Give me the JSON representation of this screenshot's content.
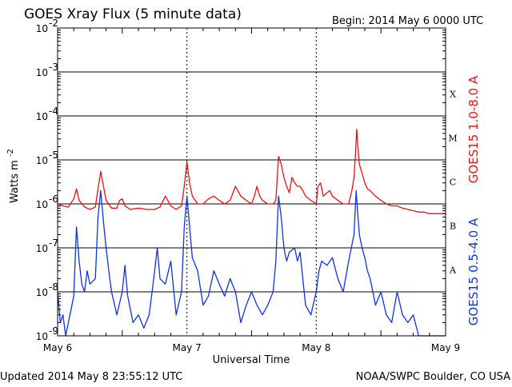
{
  "chart_data": {
    "type": "line",
    "title": "GOES Xray Flux (5 minute data)",
    "begin_label": "Begin:  2014 May 6 0000 UTC",
    "xlabel": "Universal Time",
    "ylabel_base": "Watts m",
    "ylabel_exp": "-2",
    "y_scale": "log",
    "ylim": [
      1e-09,
      0.01
    ],
    "xlim": [
      0,
      72
    ],
    "x_unit": "hours since 2014 May 6 0000 UTC",
    "grid": true,
    "x_ticks": [
      "May 6",
      "May 7",
      "May 8",
      "May 9"
    ],
    "x_tick_hours": [
      0,
      24,
      48,
      72
    ],
    "y_ticks": [
      {
        "base": "10",
        "exp": "-2",
        "value": 0.01
      },
      {
        "base": "10",
        "exp": "-3",
        "value": 0.001
      },
      {
        "base": "10",
        "exp": "-4",
        "value": 0.0001
      },
      {
        "base": "10",
        "exp": "-5",
        "value": 1e-05
      },
      {
        "base": "10",
        "exp": "-6",
        "value": 1e-06
      },
      {
        "base": "10",
        "exp": "-7",
        "value": 1e-07
      },
      {
        "base": "10",
        "exp": "-8",
        "value": 1e-08
      },
      {
        "base": "10",
        "exp": "-9",
        "value": 1e-09
      }
    ],
    "flare_classes": [
      {
        "label": "X",
        "value": 0.0001
      },
      {
        "label": "M",
        "value": 1e-05
      },
      {
        "label": "C",
        "value": 1e-06
      },
      {
        "label": "B",
        "value": 1e-07
      },
      {
        "label": "A",
        "value": 1e-08
      }
    ],
    "series": [
      {
        "name": "GOES15 1.0-8.0 A",
        "color": "#ee1111",
        "points": [
          [
            0,
            1e-06
          ],
          [
            1,
            9e-07
          ],
          [
            2,
            8.5e-07
          ],
          [
            3,
            1.3e-06
          ],
          [
            3.5,
            2.2e-06
          ],
          [
            4,
            1.2e-06
          ],
          [
            5,
            8.5e-07
          ],
          [
            6,
            7.5e-07
          ],
          [
            7,
            8.5e-07
          ],
          [
            7.5,
            2.2e-06
          ],
          [
            8,
            5.5e-06
          ],
          [
            8.4,
            3e-06
          ],
          [
            9,
            1.2e-06
          ],
          [
            10,
            8e-07
          ],
          [
            11,
            8e-07
          ],
          [
            11.5,
            1.2e-06
          ],
          [
            12,
            1.3e-06
          ],
          [
            12.5,
            9e-07
          ],
          [
            13.5,
            7.5e-07
          ],
          [
            15,
            8e-07
          ],
          [
            16.5,
            7.5e-07
          ],
          [
            18,
            7.5e-07
          ],
          [
            19,
            8.5e-07
          ],
          [
            20,
            1.5e-06
          ],
          [
            21,
            9e-07
          ],
          [
            22,
            7.5e-07
          ],
          [
            23,
            9e-07
          ],
          [
            23.5,
            2.5e-06
          ],
          [
            24,
            9e-06
          ],
          [
            24.5,
            3e-06
          ],
          [
            25,
            1.5e-06
          ],
          [
            26,
            1e-06
          ],
          [
            27,
            1e-06
          ],
          [
            28,
            1.3e-06
          ],
          [
            29,
            1.5e-06
          ],
          [
            30,
            1.2e-06
          ],
          [
            31,
            1e-06
          ],
          [
            32,
            1.2e-06
          ],
          [
            33,
            2.5e-06
          ],
          [
            34,
            1.5e-06
          ],
          [
            35,
            1.2e-06
          ],
          [
            36,
            1e-06
          ],
          [
            36.5,
            1.5e-06
          ],
          [
            37,
            2.5e-06
          ],
          [
            37.5,
            1.5e-06
          ],
          [
            38,
            1.2e-06
          ],
          [
            39,
            1e-06
          ],
          [
            40,
            1e-06
          ],
          [
            40.5,
            1.2e-06
          ],
          [
            41,
            1.2e-05
          ],
          [
            41.5,
            8e-06
          ],
          [
            42,
            4e-06
          ],
          [
            42.5,
            2.5e-06
          ],
          [
            43,
            1.8e-06
          ],
          [
            43.5,
            4e-06
          ],
          [
            44,
            3e-06
          ],
          [
            44.5,
            2.5e-06
          ],
          [
            45,
            2.5e-06
          ],
          [
            45.5,
            2e-06
          ],
          [
            46,
            1.5e-06
          ],
          [
            47,
            1.2e-06
          ],
          [
            48,
            1e-06
          ],
          [
            48.3,
            2.5e-06
          ],
          [
            48.8,
            3e-06
          ],
          [
            49.3,
            1.5e-06
          ],
          [
            50,
            1.8e-06
          ],
          [
            50.5,
            2e-06
          ],
          [
            51,
            1.5e-06
          ],
          [
            52,
            1.2e-06
          ],
          [
            53,
            1e-06
          ],
          [
            54,
            1e-06
          ],
          [
            54.6,
            2e-06
          ],
          [
            55,
            4e-06
          ],
          [
            55.3,
            1.5e-05
          ],
          [
            55.5,
            5e-05
          ],
          [
            55.8,
            1.5e-05
          ],
          [
            56,
            8e-06
          ],
          [
            56.5,
            5e-06
          ],
          [
            57,
            3e-06
          ],
          [
            57.5,
            2.2e-06
          ],
          [
            58,
            2e-06
          ],
          [
            59,
            1.5e-06
          ],
          [
            60,
            1.2e-06
          ],
          [
            61,
            1e-06
          ],
          [
            62,
            9e-07
          ],
          [
            63,
            9e-07
          ],
          [
            64,
            8e-07
          ],
          [
            65,
            7.5e-07
          ],
          [
            66,
            7e-07
          ],
          [
            67,
            6.5e-07
          ],
          [
            68,
            6.5e-07
          ],
          [
            69,
            6e-07
          ],
          [
            70,
            6e-07
          ],
          [
            71,
            6e-07
          ],
          [
            72,
            6e-07
          ]
        ]
      },
      {
        "name": "GOES15 0.5-4.0 A",
        "color": "#1133dd",
        "points": [
          [
            0,
            1e-08
          ],
          [
            0.5,
            2e-09
          ],
          [
            1,
            3e-09
          ],
          [
            1.5,
            1e-09
          ],
          [
            2,
            2e-09
          ],
          [
            3,
            8e-09
          ],
          [
            3.5,
            3e-07
          ],
          [
            4,
            5e-08
          ],
          [
            4.5,
            1.5e-08
          ],
          [
            5,
            1e-08
          ],
          [
            5.5,
            3e-08
          ],
          [
            6,
            1.5e-08
          ],
          [
            7,
            2e-08
          ],
          [
            7.5,
            5e-07
          ],
          [
            8,
            2e-06
          ],
          [
            8.5,
            4e-07
          ],
          [
            9,
            1e-07
          ],
          [
            9.5,
            3e-08
          ],
          [
            10,
            1e-08
          ],
          [
            11,
            3e-09
          ],
          [
            12,
            1e-08
          ],
          [
            12.5,
            4e-08
          ],
          [
            13,
            8e-09
          ],
          [
            14,
            2e-09
          ],
          [
            15,
            3e-09
          ],
          [
            16,
            1.5e-09
          ],
          [
            17,
            3e-09
          ],
          [
            18,
            3e-08
          ],
          [
            18.5,
            1e-07
          ],
          [
            19,
            2e-08
          ],
          [
            20,
            1.5e-08
          ],
          [
            21,
            5e-08
          ],
          [
            22,
            3e-09
          ],
          [
            23,
            1e-08
          ],
          [
            23.5,
            3e-07
          ],
          [
            24,
            1.5e-06
          ],
          [
            24.5,
            3e-07
          ],
          [
            25,
            6e-08
          ],
          [
            26,
            3e-08
          ],
          [
            27,
            5e-09
          ],
          [
            28,
            8e-09
          ],
          [
            29,
            3e-08
          ],
          [
            30,
            1.5e-08
          ],
          [
            31,
            8e-09
          ],
          [
            32,
            2e-08
          ],
          [
            33,
            1e-08
          ],
          [
            34,
            2e-09
          ],
          [
            35,
            5e-09
          ],
          [
            36,
            1e-08
          ],
          [
            37,
            5e-09
          ],
          [
            38,
            3e-09
          ],
          [
            39,
            5e-09
          ],
          [
            40,
            1e-08
          ],
          [
            40.5,
            5e-08
          ],
          [
            41,
            1.5e-06
          ],
          [
            41.5,
            5e-07
          ],
          [
            42,
            1e-07
          ],
          [
            42.5,
            5e-08
          ],
          [
            43,
            8e-08
          ],
          [
            44,
            1e-07
          ],
          [
            44.5,
            5e-08
          ],
          [
            45,
            8e-08
          ],
          [
            45.5,
            2e-08
          ],
          [
            46,
            5e-09
          ],
          [
            47,
            3e-09
          ],
          [
            48,
            1e-08
          ],
          [
            48.5,
            3e-08
          ],
          [
            49,
            5e-08
          ],
          [
            50,
            4e-08
          ],
          [
            51,
            6e-08
          ],
          [
            52,
            2e-08
          ],
          [
            53,
            1e-08
          ],
          [
            54,
            5e-08
          ],
          [
            55,
            2e-07
          ],
          [
            55.4,
            2e-06
          ],
          [
            55.7,
            6e-07
          ],
          [
            56,
            2e-07
          ],
          [
            56.5,
            1e-07
          ],
          [
            57,
            6e-08
          ],
          [
            57.5,
            3e-08
          ],
          [
            58,
            2e-08
          ],
          [
            59,
            5e-09
          ],
          [
            60,
            1e-08
          ],
          [
            61,
            3e-09
          ],
          [
            62,
            2e-09
          ],
          [
            63,
            1e-08
          ],
          [
            64,
            3e-09
          ],
          [
            65,
            2e-09
          ],
          [
            66,
            3e-09
          ],
          [
            67,
            1e-09
          ],
          [
            68,
            1e-09
          ],
          [
            69,
            1e-09
          ],
          [
            70,
            1e-09
          ],
          [
            71,
            1e-09
          ],
          [
            72,
            1e-09
          ]
        ]
      }
    ]
  },
  "footer": {
    "updated": "Updated 2014 May  8 23:55:12 UTC",
    "credit": "NOAA/SWPC Boulder, CO USA"
  }
}
